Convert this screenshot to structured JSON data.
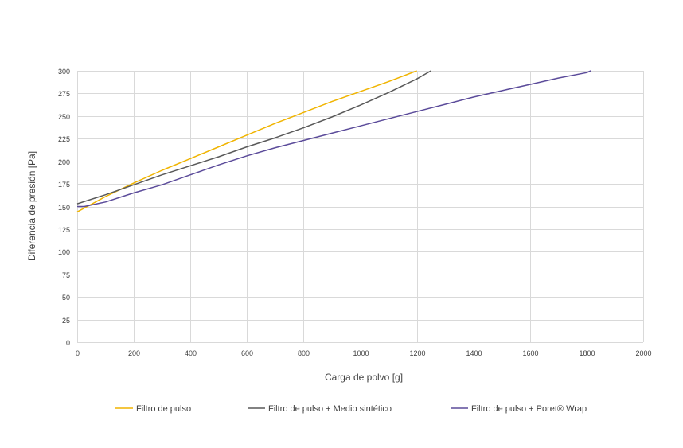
{
  "chart_data": {
    "type": "line",
    "title": "",
    "xlabel": "Carga de polvo [g]",
    "ylabel": "Diferencia de presión [Pa]",
    "xlim": [
      0,
      2000
    ],
    "ylim": [
      0,
      300
    ],
    "x_ticks": [
      0,
      200,
      400,
      600,
      800,
      1000,
      1200,
      1400,
      1600,
      1800,
      2000
    ],
    "y_ticks": [
      0,
      25,
      50,
      75,
      100,
      125,
      150,
      175,
      200,
      225,
      250,
      275,
      300
    ],
    "grid": true,
    "legend_position": "bottom",
    "colors": {
      "grid": "#d9d9d9",
      "axis_text": "#404040",
      "label_text": "#404040"
    },
    "series": [
      {
        "name": "Filtro de pulso",
        "color": "#f0b400",
        "x": [
          0,
          100,
          200,
          300,
          400,
          500,
          600,
          700,
          800,
          900,
          1000,
          1100,
          1200
        ],
        "y": [
          144,
          161,
          176,
          190,
          203,
          216,
          229,
          242,
          254,
          266,
          277,
          288,
          300
        ]
      },
      {
        "name": "Filtro de pulso + Medio sintético",
        "color": "#595959",
        "x": [
          0,
          100,
          200,
          300,
          400,
          500,
          600,
          700,
          800,
          900,
          1000,
          1100,
          1200,
          1250
        ],
        "y": [
          153,
          163,
          174,
          185,
          195,
          205,
          216,
          226,
          237,
          249,
          262,
          276,
          291,
          300
        ]
      },
      {
        "name": "Filtro de pulso + Poret® Wrap",
        "color": "#5b4b9a",
        "x": [
          0,
          25,
          100,
          200,
          300,
          400,
          500,
          600,
          700,
          800,
          900,
          1000,
          1100,
          1200,
          1300,
          1400,
          1500,
          1600,
          1700,
          1800,
          1815
        ],
        "y": [
          150,
          150,
          155,
          165,
          174,
          185,
          196,
          206,
          215,
          223,
          231,
          239,
          247,
          255,
          263,
          271,
          278,
          285,
          292,
          298,
          300
        ]
      }
    ]
  }
}
